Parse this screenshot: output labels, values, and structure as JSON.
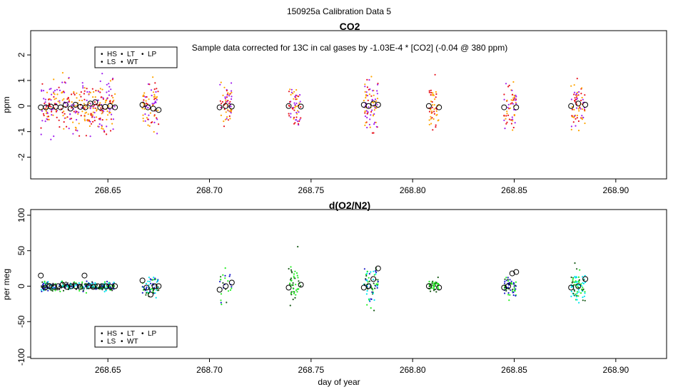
{
  "page_title": "150925a   Calibration Data 5",
  "legend_symbol": "•",
  "chart_data": [
    {
      "type": "scatter",
      "title": "CO2",
      "annotation": "Sample data corrected for 13C in cal gases by -1.03E-4 * [CO2] (-0.04 @ 380 ppm)",
      "xlabel": "",
      "ylabel": "ppm",
      "xlim": [
        268.612,
        268.925
      ],
      "ylim": [
        -2.85,
        2.95
      ],
      "xticks": [
        268.65,
        268.7,
        268.75,
        268.8,
        268.85,
        268.9
      ],
      "xtick_labels": [
        "268.65",
        "268.70",
        "268.75",
        "268.80",
        "268.85",
        "268.90"
      ],
      "yticks": [
        -2,
        -1,
        0,
        1,
        2
      ],
      "ytick_labels": [
        "-2",
        "-1",
        "0",
        "1",
        "2"
      ],
      "legend": [
        {
          "label": "HS",
          "color": "#e8141e"
        },
        {
          "label": "LT",
          "color": "#333333"
        },
        {
          "label": "LP",
          "color": "#ffa500"
        },
        {
          "label": "LS",
          "color": "#a020f0"
        },
        {
          "label": "WT",
          "color": "#333333"
        }
      ],
      "clusters": [
        {
          "x": [
            268.617,
            268.6535
          ],
          "spread": 1.0,
          "n": 320,
          "colors": [
            "#e8141e",
            "#ffa500",
            "#a020f0"
          ],
          "means": [
            -0.05,
            -0.05,
            -0.02,
            -0.03,
            -0.05,
            0.05,
            -0.1,
            0.05,
            -0.03,
            -0.05,
            0.1,
            0.15,
            -0.05,
            -0.03,
            0.0,
            -0.05
          ]
        },
        {
          "x": [
            268.667,
            268.675
          ],
          "spread": 0.9,
          "n": 80,
          "colors": [
            "#e8141e",
            "#a020f0",
            "#ffa500"
          ],
          "means": [
            0.05,
            -0.05,
            -0.1,
            -0.15
          ]
        },
        {
          "x": [
            268.705,
            268.711
          ],
          "spread": 0.8,
          "n": 60,
          "colors": [
            "#ffa500",
            "#a020f0",
            "#e8141e"
          ],
          "means": [
            -0.05,
            0.0,
            -0.02
          ]
        },
        {
          "x": [
            268.739,
            268.745
          ],
          "spread": 0.8,
          "n": 60,
          "colors": [
            "#e8141e",
            "#ffa500",
            "#a020f0"
          ],
          "means": [
            0.0,
            -0.02
          ]
        },
        {
          "x": [
            268.776,
            268.783
          ],
          "spread": 0.9,
          "n": 80,
          "colors": [
            "#ffa500",
            "#e8141e",
            "#a020f0"
          ],
          "means": [
            0.05,
            0.0,
            0.1,
            0.05
          ]
        },
        {
          "x": [
            268.808,
            268.813
          ],
          "spread": 0.8,
          "n": 50,
          "colors": [
            "#e8141e",
            "#ffa500"
          ],
          "means": [
            0.0,
            -0.05
          ]
        },
        {
          "x": [
            268.845,
            268.851
          ],
          "spread": 0.8,
          "n": 60,
          "colors": [
            "#ffa500",
            "#a020f0",
            "#e8141e"
          ],
          "means": [
            -0.05,
            -0.05
          ]
        },
        {
          "x": [
            268.878,
            268.885
          ],
          "spread": 0.9,
          "n": 70,
          "colors": [
            "#e8141e",
            "#ffa500",
            "#a020f0"
          ],
          "means": [
            0.0,
            0.1,
            0.05
          ]
        }
      ]
    },
    {
      "type": "scatter",
      "title": "d(O2/N2)",
      "xlabel": "day of year",
      "ylabel": "per meg",
      "xlim": [
        268.612,
        268.925
      ],
      "ylim": [
        -102,
        108
      ],
      "xticks": [
        268.65,
        268.7,
        268.75,
        268.8,
        268.85,
        268.9
      ],
      "xtick_labels": [
        "268.65",
        "268.70",
        "268.75",
        "268.80",
        "268.85",
        "268.90"
      ],
      "yticks": [
        -100,
        -50,
        0,
        50,
        100
      ],
      "ytick_labels": [
        "-100",
        "-50",
        "0",
        "50",
        "100"
      ],
      "legend": [
        {
          "label": "HS",
          "color": "#1a5c1a"
        },
        {
          "label": "LT",
          "color": "#00e5ee"
        },
        {
          "label": "LP",
          "color": "#1c1cc8"
        },
        {
          "label": "LS",
          "color": "#22ee22"
        },
        {
          "label": "WT",
          "color": "#333333"
        }
      ],
      "clusters": [
        {
          "x": [
            268.617,
            268.6535
          ],
          "spread": 6,
          "n": 320,
          "colors": [
            "#1c1cc8",
            "#1a5c1a",
            "#22ee22",
            "#00e5ee",
            "#333333"
          ],
          "means": [
            15,
            -2,
            0,
            -1,
            0,
            2,
            -1,
            0,
            0,
            -1,
            15,
            0,
            -1,
            0,
            0,
            0,
            -1,
            0
          ]
        },
        {
          "x": [
            268.667,
            268.675
          ],
          "spread": 14,
          "n": 70,
          "colors": [
            "#1c1cc8",
            "#1a5c1a",
            "#00e5ee",
            "#22ee22"
          ],
          "means": [
            8,
            -2,
            -12,
            0,
            0
          ]
        },
        {
          "x": [
            268.705,
            268.711
          ],
          "spread": 25,
          "n": 25,
          "colors": [
            "#1c1cc8",
            "#22ee22",
            "#1a5c1a"
          ],
          "means": [
            -5,
            0,
            5
          ]
        },
        {
          "x": [
            268.739,
            268.745
          ],
          "spread": 35,
          "n": 45,
          "colors": [
            "#22ee22",
            "#1a5c1a"
          ],
          "means": [
            -2,
            2
          ]
        },
        {
          "x": [
            268.776,
            268.783
          ],
          "spread": 25,
          "n": 70,
          "colors": [
            "#22ee22",
            "#00e5ee",
            "#1c1cc8",
            "#1a5c1a"
          ],
          "means": [
            -2,
            0,
            10,
            25
          ]
        },
        {
          "x": [
            268.808,
            268.813
          ],
          "spread": 8,
          "n": 45,
          "colors": [
            "#22ee22",
            "#1a5c1a"
          ],
          "means": [
            0,
            -2
          ]
        },
        {
          "x": [
            268.845,
            268.851
          ],
          "spread": 12,
          "n": 60,
          "colors": [
            "#22ee22",
            "#1a5c1a",
            "#1c1cc8"
          ],
          "means": [
            -2,
            0,
            18,
            20
          ]
        },
        {
          "x": [
            268.878,
            268.885
          ],
          "spread": 22,
          "n": 80,
          "colors": [
            "#22ee22",
            "#1a5c1a",
            "#00e5ee"
          ],
          "means": [
            -2,
            0,
            10
          ]
        }
      ]
    }
  ]
}
